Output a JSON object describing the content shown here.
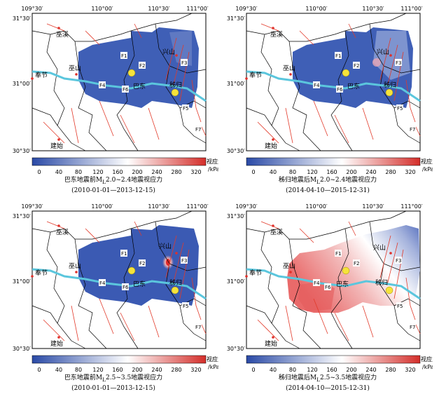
{
  "axis": {
    "lon_ticks": [
      "109°30′",
      "110°00′",
      "110°30′",
      "111°00′"
    ],
    "lat_ticks": [
      "31°30′",
      "31°00′",
      "30°30′"
    ]
  },
  "places": {
    "wuxi": "巫溪",
    "xingshan": "兴山",
    "fengjie": "奉节",
    "wushan": "巫山",
    "badong": "巴东",
    "zigui": "秭归",
    "jianshi": "建始"
  },
  "faults": [
    "F1",
    "F2",
    "F3",
    "F4",
    "F5",
    "F6",
    "F7"
  ],
  "colorbar": {
    "title": "视应力",
    "unit": "/kPa",
    "ticks": [
      "0",
      "40",
      "80",
      "120",
      "160",
      "200",
      "240",
      "280",
      "320"
    ],
    "colors": [
      "#2a4aa6",
      "#ffffff",
      "#d42e2a"
    ]
  },
  "panels": [
    {
      "caption_line1": "巴东地震前M",
      "caption_sub": "L",
      "caption_rest": "2.0~2.4地震视应力",
      "caption_line2": "(2010-01-01—2013-12-15)"
    },
    {
      "caption_line1": "秭归地震后M",
      "caption_sub": "L",
      "caption_rest": "2.0~2.4地震视应力",
      "caption_line2": "(2014-04-10—2015-12-31)"
    },
    {
      "caption_line1": "巴东地震前M",
      "caption_sub": "L",
      "caption_rest": "2.5~3.5地震视应力",
      "caption_line2": "(2010-01-01—2013-12-15)"
    },
    {
      "caption_line1": "秭归地震后M",
      "caption_sub": "L",
      "caption_rest": "2.5~3.5地震视应力",
      "caption_line2": "(2014-04-10—2015-12-31)"
    }
  ]
}
